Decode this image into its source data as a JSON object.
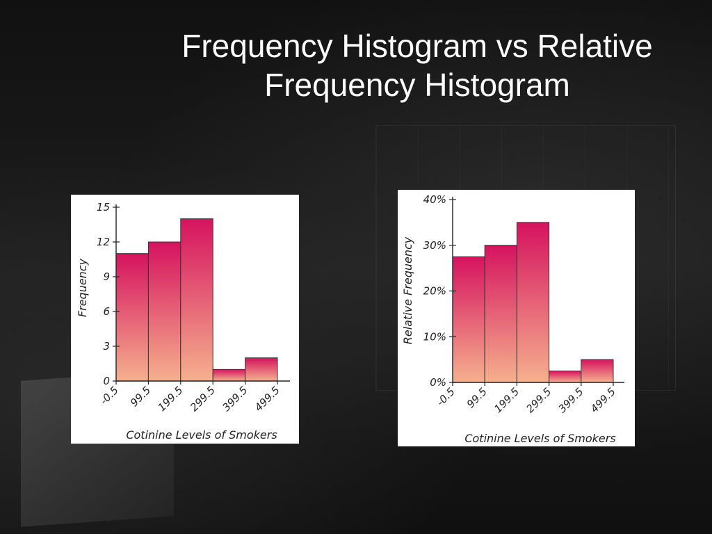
{
  "slide": {
    "title_line1": "Frequency Histogram vs Relative",
    "title_line2": "Frequency Histogram"
  },
  "chart_data": [
    {
      "type": "bar",
      "categories": [
        "-0.5–99.5",
        "99.5–199.5",
        "199.5–299.5",
        "299.5–399.5",
        "399.5–499.5"
      ],
      "bin_edges": [
        "-0.5",
        "99.5",
        "199.5",
        "299.5",
        "399.5",
        "499.5"
      ],
      "values": [
        11,
        12,
        14,
        1,
        2
      ],
      "yticks": [
        "0",
        "3",
        "6",
        "9",
        "12",
        "15"
      ],
      "ylim": [
        0,
        15
      ],
      "xlabel": "Cotinine Levels of Smokers",
      "ylabel": "Frequency",
      "bar_color_top": "#d6135f",
      "bar_color_bottom": "#f5b08e"
    },
    {
      "type": "bar",
      "categories": [
        "-0.5–99.5",
        "99.5–199.5",
        "199.5–299.5",
        "299.5–399.5",
        "399.5–499.5"
      ],
      "bin_edges": [
        "-0.5",
        "99.5",
        "199.5",
        "299.5",
        "399.5",
        "499.5"
      ],
      "values": [
        27.5,
        30,
        35,
        2.5,
        5
      ],
      "yticks": [
        "0%",
        "10%",
        "20%",
        "30%",
        "40%"
      ],
      "ylim": [
        0,
        40
      ],
      "xlabel": "Cotinine Levels of Smokers",
      "ylabel": "Relative Frequency",
      "bar_color_top": "#d6135f",
      "bar_color_bottom": "#f5b08e"
    }
  ]
}
